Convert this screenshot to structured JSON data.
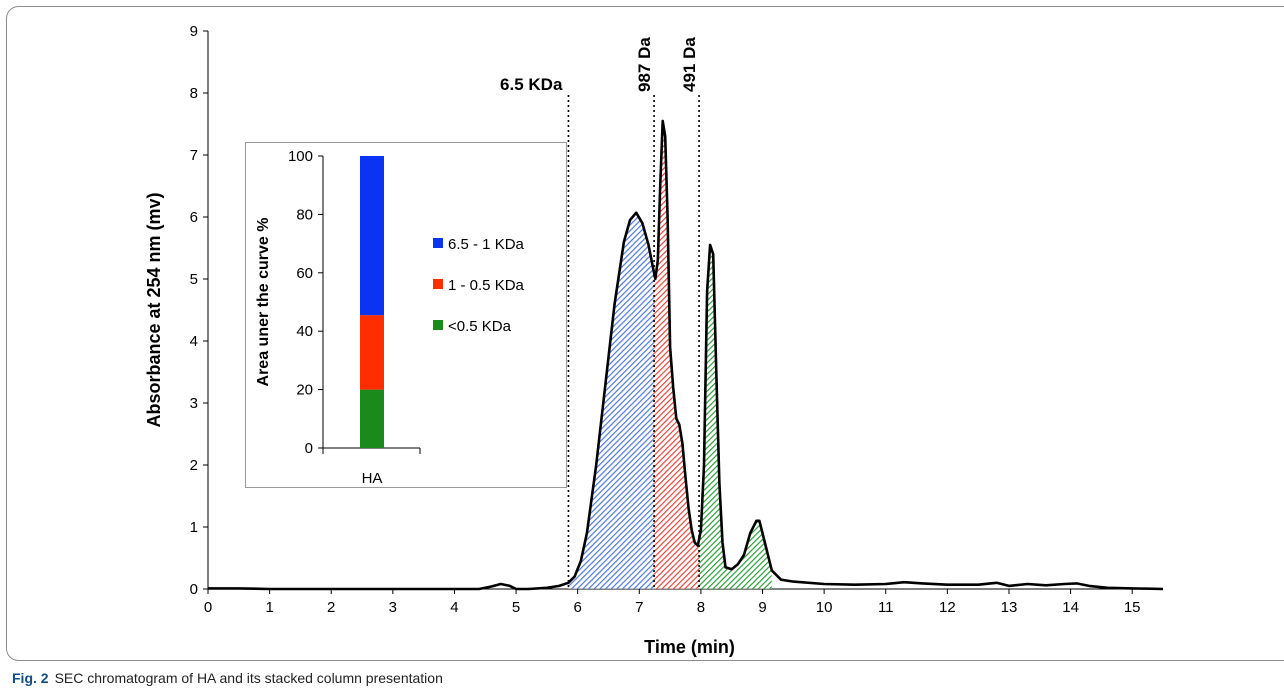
{
  "caption": {
    "label": "Fig. 2",
    "text": "SEC chromatogram of HA and its stacked column presentation"
  },
  "colors": {
    "frame": "#8c8c8c",
    "curve": "#000000",
    "fill_high": "#4f79d8",
    "fill_mid": "#e2473c",
    "fill_low": "#2e9c3b",
    "bar_high": "#0b33f4",
    "bar_mid": "#ff2d00",
    "bar_low": "#1a8a1a",
    "caption_label": "#0f4d8a"
  },
  "chart_data": [
    {
      "type": "line",
      "title": "",
      "xlabel": "Time (min)",
      "ylabel": "Absorbance at 254 nm (mv)",
      "xlim": [
        0,
        15.5
      ],
      "ylim": [
        0,
        9
      ],
      "xticks": [
        "0",
        "1",
        "2",
        "3",
        "4",
        "5",
        "6",
        "7",
        "8",
        "9",
        "10",
        "11",
        "12",
        "13",
        "14",
        "15"
      ],
      "yticks": [
        "0",
        "1",
        "2",
        "3",
        "4",
        "5",
        "6",
        "7",
        "8",
        "9"
      ],
      "grid": false,
      "series": [
        {
          "x": [
            0,
            0.5,
            1,
            2,
            3,
            4,
            4.4,
            4.6,
            4.75,
            4.9,
            5.0,
            5.2,
            5.5,
            5.7,
            5.85,
            5.95,
            6.05,
            6.15,
            6.3,
            6.45,
            6.6,
            6.75,
            6.85,
            6.95,
            7.05,
            7.15,
            7.22,
            7.26,
            7.3,
            7.34,
            7.38,
            7.42,
            7.46,
            7.5,
            7.55,
            7.6,
            7.65,
            7.7,
            7.75,
            7.8,
            7.85,
            7.9,
            7.95,
            8.0,
            8.05,
            8.1,
            8.15,
            8.2,
            8.25,
            8.3,
            8.35,
            8.4,
            8.5,
            8.6,
            8.7,
            8.8,
            8.9,
            8.95,
            9.05,
            9.15,
            9.3,
            9.5,
            10,
            10.5,
            11,
            11.3,
            11.6,
            12,
            12.5,
            12.8,
            13,
            13.3,
            13.6,
            13.9,
            14.1,
            14.3,
            14.6,
            15,
            15.5
          ],
          "y": [
            0.01,
            0.01,
            0.0,
            0.0,
            0.0,
            0.0,
            0.0,
            0.04,
            0.08,
            0.05,
            0.0,
            0.0,
            0.02,
            0.05,
            0.1,
            0.2,
            0.45,
            0.9,
            2.0,
            3.3,
            4.6,
            5.6,
            5.95,
            6.07,
            5.9,
            5.55,
            5.2,
            5.0,
            5.3,
            6.5,
            7.55,
            7.3,
            6.0,
            3.9,
            3.25,
            2.75,
            2.65,
            2.35,
            1.8,
            1.3,
            0.95,
            0.75,
            0.7,
            0.95,
            2.0,
            4.8,
            5.55,
            5.4,
            3.5,
            1.7,
            0.75,
            0.35,
            0.32,
            0.4,
            0.55,
            0.9,
            1.1,
            1.1,
            0.7,
            0.3,
            0.15,
            0.12,
            0.08,
            0.07,
            0.08,
            0.11,
            0.09,
            0.07,
            0.07,
            0.1,
            0.05,
            0.08,
            0.06,
            0.08,
            0.09,
            0.05,
            0.02,
            0.01,
            0.0
          ]
        }
      ],
      "regions": [
        {
          "x_start": 5.85,
          "x_end": 7.24,
          "color_key": "fill_high"
        },
        {
          "x_start": 7.24,
          "x_end": 7.97,
          "color_key": "fill_mid"
        },
        {
          "x_start": 7.97,
          "x_end": 9.15,
          "color_key": "fill_low"
        }
      ],
      "annotations": [
        {
          "x": 5.85,
          "text": "6.5 KDa",
          "orientation": "horizontal",
          "bold": true
        },
        {
          "x": 7.24,
          "text": "987 Da",
          "orientation": "vertical",
          "bold": true
        },
        {
          "x": 7.97,
          "text": "491 Da",
          "orientation": "vertical",
          "bold": true
        }
      ]
    },
    {
      "type": "bar",
      "stacked": true,
      "title": "",
      "xlabel": "",
      "ylabel": "Area uner the curve %",
      "categories": [
        "HA"
      ],
      "ylim": [
        0,
        100
      ],
      "yticks": [
        "0",
        "20",
        "40",
        "60",
        "80",
        "100"
      ],
      "legend": "right",
      "series": [
        {
          "name": "<0.5 KDa",
          "values": [
            20
          ],
          "color_key": "bar_low"
        },
        {
          "name": "1 - 0.5 KDa",
          "values": [
            25.5
          ],
          "color_key": "bar_mid"
        },
        {
          "name": "6.5 - 1 KDa",
          "values": [
            54.5
          ],
          "color_key": "bar_high"
        }
      ],
      "legend_order": [
        "6.5 - 1 KDa",
        "1 - 0.5 KDa",
        "<0.5 KDa"
      ]
    }
  ]
}
